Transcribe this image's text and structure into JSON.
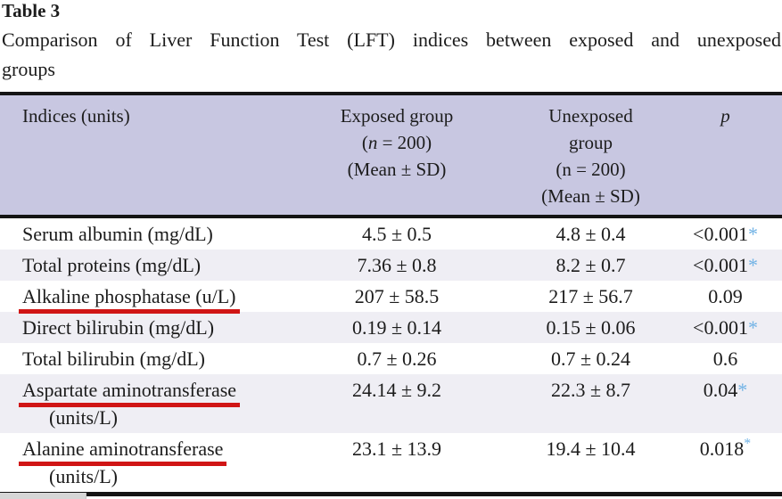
{
  "doc": {
    "title": "Table 3",
    "caption_line1": "Comparison of Liver Function Test (LFT) indices between exposed and unexposed",
    "caption_line2": "groups"
  },
  "table": {
    "header": {
      "col1": "Indices (units)",
      "col2_line1": "Exposed group",
      "col2_n_prefix": "(",
      "col2_n_char": "n",
      "col2_n_suffix": " = 200)",
      "col2_line3": "(Mean ± SD)",
      "col3_line1": "Unexposed",
      "col3_line2": "group",
      "col3_line3": "(n = 200)",
      "col3_line4": "(Mean ± SD)",
      "col4": "p"
    },
    "rows": [
      {
        "label": "Serum albumin (mg/dL)",
        "label2": "",
        "exposed": "4.5 ± 0.5",
        "unexposed": "4.8 ± 0.4",
        "p": "<0.001",
        "star": "*",
        "striped": false,
        "underlined": false
      },
      {
        "label": "Total proteins (mg/dL)",
        "label2": "",
        "exposed": "7.36 ± 0.8",
        "unexposed": "8.2 ± 0.7",
        "p": "<0.001",
        "star": "*",
        "striped": true,
        "underlined": false
      },
      {
        "label": "Alkaline phosphatase (u/L)",
        "label2": "",
        "exposed": "207 ± 58.5",
        "unexposed": "217 ± 56.7",
        "p": "0.09",
        "star": "",
        "striped": false,
        "underlined": true
      },
      {
        "label": "Direct bilirubin (mg/dL)",
        "label2": "",
        "exposed": "0.19 ± 0.14",
        "unexposed": "0.15 ± 0.06",
        "p": "<0.001",
        "star": "*",
        "striped": true,
        "underlined": false
      },
      {
        "label": "Total bilirubin (mg/dL)",
        "label2": "",
        "exposed": "0.7 ± 0.26",
        "unexposed": "0.7 ± 0.24",
        "p": "0.6",
        "star": "",
        "striped": false,
        "underlined": false
      },
      {
        "label": "Aspartate aminotransferase",
        "label2": "(units/L)",
        "exposed": "24.14 ± 9.2",
        "unexposed": "22.3 ± 8.7",
        "p": "0.04",
        "star": "*",
        "striped": true,
        "underlined": true
      },
      {
        "label": "Alanine aminotransferase",
        "label2": "(units/L)",
        "exposed": "23.1 ± 13.9",
        "unexposed": "19.4 ± 10.4",
        "p": "0.018",
        "star": "*",
        "striped": false,
        "underlined": true,
        "star_superscript": true
      }
    ]
  },
  "colors": {
    "header_bg": "#c8c7e1",
    "stripe_bg": "#efeef4",
    "star_color": "#70b2e5",
    "underline_color": "#d01515",
    "border_color": "#141414",
    "graybox_color": "#d6d6d6",
    "text_color": "#1c1c1c"
  }
}
